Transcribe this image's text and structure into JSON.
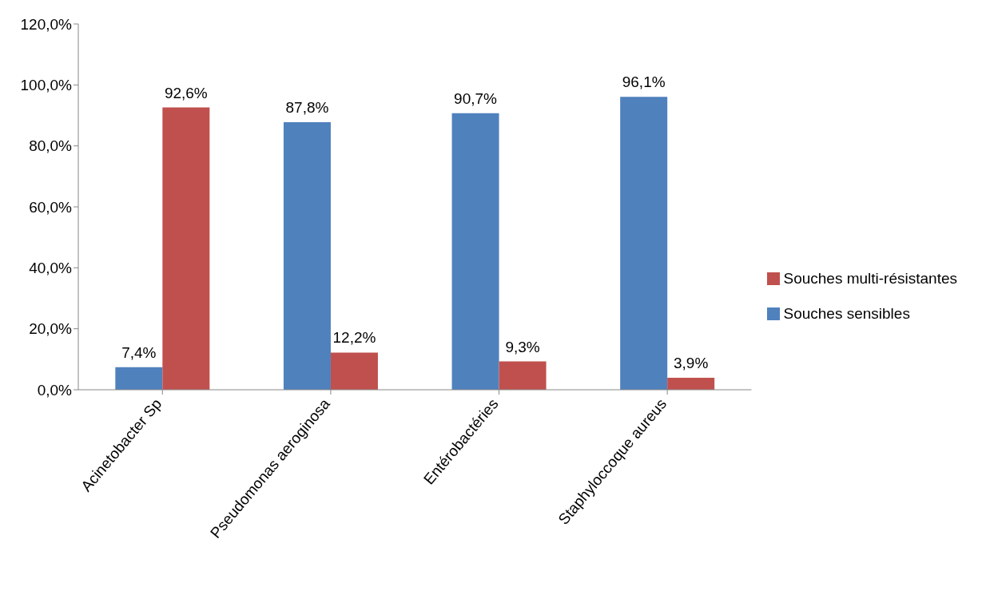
{
  "chart_data": {
    "type": "bar",
    "categories": [
      "Acinetobacter Sp",
      "Pseudomonas aeroginosa",
      "Entérobactéries",
      "Staphyloccoque aureus"
    ],
    "series": [
      {
        "name": "Souches sensibles",
        "color": "#4f81bd",
        "values": [
          7.4,
          87.8,
          90.7,
          96.1
        ],
        "value_labels": [
          "7,4%",
          "87,8%",
          "90,7%",
          "96,1%"
        ]
      },
      {
        "name": "Souches multi-résistantes",
        "color": "#c0504d",
        "values": [
          92.6,
          12.2,
          9.3,
          3.9
        ],
        "value_labels": [
          "92,6%",
          "12,2%",
          "9,3%",
          "3,9%"
        ]
      }
    ],
    "ylim": [
      0,
      120
    ],
    "yticks": [
      {
        "value": 0,
        "label": "0,0%"
      },
      {
        "value": 20,
        "label": "20,0%"
      },
      {
        "value": 40,
        "label": "40,0%"
      },
      {
        "value": 60,
        "label": "60,0%"
      },
      {
        "value": 80,
        "label": "80,0%"
      },
      {
        "value": 100,
        "label": "100,0%"
      },
      {
        "value": 120,
        "label": "120,0%"
      }
    ],
    "grid": false,
    "legend": "right"
  }
}
